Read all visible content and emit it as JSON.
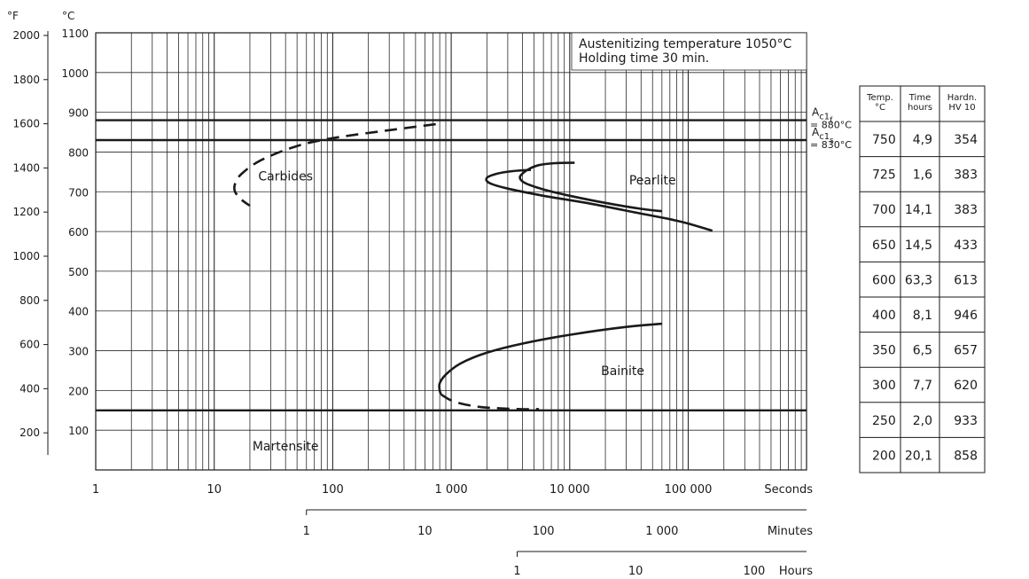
{
  "chart_data": {
    "type": "line",
    "title": "",
    "annotation": [
      "Austenitizing temperature 1050°C",
      "Holding time 30 min."
    ],
    "x_scale": "log",
    "x_range_seconds": [
      1,
      1000000
    ],
    "axes": {
      "seconds": {
        "unit_label": "Seconds",
        "ticks": [
          {
            "value": 1,
            "label": "1"
          },
          {
            "value": 10,
            "label": "10"
          },
          {
            "value": 100,
            "label": "100"
          },
          {
            "value": 1000,
            "label": "1 000"
          },
          {
            "value": 10000,
            "label": "10 000"
          },
          {
            "value": 100000,
            "label": "100 000"
          }
        ]
      },
      "minutes": {
        "unit_label": "Minutes",
        "ticks": [
          {
            "value": 1,
            "label": "1"
          },
          {
            "value": 10,
            "label": "10"
          },
          {
            "value": 100,
            "label": "100"
          },
          {
            "value": 1000,
            "label": "1 000"
          }
        ]
      },
      "hours": {
        "unit_label": "Hours",
        "ticks": [
          {
            "value": 1,
            "label": "1"
          },
          {
            "value": 10,
            "label": "10"
          },
          {
            "value": 100,
            "label": "100"
          }
        ]
      },
      "celsius": {
        "unit_label": "°C",
        "range": [
          0,
          1100
        ],
        "ticks": [
          100,
          200,
          300,
          400,
          500,
          600,
          700,
          800,
          900,
          1000,
          1100
        ]
      },
      "fahrenheit": {
        "unit_label": "°F",
        "ticks": [
          200,
          400,
          600,
          800,
          1000,
          1200,
          1400,
          1600,
          1800,
          2000
        ]
      }
    },
    "horizontal_lines": [
      {
        "label_main": "A",
        "label_sub": "c1",
        "label_subsub": "f",
        "label_value": "= 880°C",
        "y": 880
      },
      {
        "label_main": "A",
        "label_sub": "c1",
        "label_subsub": "s",
        "label_value": "= 830°C",
        "y": 830
      },
      {
        "label_main": "",
        "y": 150
      }
    ],
    "regions": [
      {
        "label": "Carbides",
        "x": 40,
        "y": 740
      },
      {
        "label": "Pearlite",
        "x": 50000,
        "y": 730
      },
      {
        "label": "Bainite",
        "x": 28000,
        "y": 250
      },
      {
        "label": "Martensite",
        "x": 40,
        "y": 60
      }
    ],
    "curves": [
      {
        "name": "carbides",
        "style": "dashed",
        "points": [
          [
            740,
            870
          ],
          [
            300,
            855
          ],
          [
            100,
            835
          ],
          [
            50,
            815
          ],
          [
            25,
            780
          ],
          [
            17,
            745
          ],
          [
            15,
            720
          ],
          [
            15,
            700
          ],
          [
            17,
            680
          ],
          [
            20,
            665
          ]
        ]
      },
      {
        "name": "pearlite-start",
        "style": "solid",
        "points": [
          [
            4700,
            755
          ],
          [
            3300,
            752
          ],
          [
            2400,
            745
          ],
          [
            2000,
            735
          ],
          [
            2100,
            722
          ],
          [
            3000,
            708
          ],
          [
            6000,
            690
          ],
          [
            15000,
            670
          ],
          [
            40000,
            645
          ],
          [
            70000,
            631
          ],
          [
            100000,
            620
          ],
          [
            160000,
            602
          ]
        ]
      },
      {
        "name": "pearlite-finish",
        "style": "solid",
        "points": [
          [
            11000,
            773
          ],
          [
            7500,
            772
          ],
          [
            5500,
            767
          ],
          [
            4400,
            755
          ],
          [
            3800,
            737
          ],
          [
            4200,
            722
          ],
          [
            6000,
            706
          ],
          [
            10000,
            690
          ],
          [
            20000,
            672
          ],
          [
            40000,
            657
          ],
          [
            60000,
            651
          ]
        ]
      },
      {
        "name": "bainite-start",
        "style": "solid",
        "points": [
          [
            60000,
            368
          ],
          [
            30000,
            360
          ],
          [
            10000,
            340
          ],
          [
            4000,
            318
          ],
          [
            2000,
            295
          ],
          [
            1200,
            268
          ],
          [
            900,
            240
          ],
          [
            800,
            218
          ],
          [
            800,
            200
          ],
          [
            820,
            190
          ]
        ]
      },
      {
        "name": "bainite-finish",
        "style": "dashed",
        "points": [
          [
            820,
            190
          ],
          [
            1000,
            175
          ],
          [
            1300,
            165
          ],
          [
            1800,
            158
          ],
          [
            2600,
            155
          ],
          [
            3800,
            153
          ],
          [
            5500,
            153
          ]
        ]
      }
    ]
  },
  "table": {
    "headers": [
      [
        "Temp.",
        "°C"
      ],
      [
        "Time",
        "hours"
      ],
      [
        "Hardn.",
        "HV 10"
      ]
    ],
    "rows": [
      [
        "750",
        "4,9",
        "354"
      ],
      [
        "725",
        "1,6",
        "383"
      ],
      [
        "700",
        "14,1",
        "383"
      ],
      [
        "650",
        "14,5",
        "433"
      ],
      [
        "600",
        "63,3",
        "613"
      ],
      [
        "400",
        "8,1",
        "946"
      ],
      [
        "350",
        "6,5",
        "657"
      ],
      [
        "300",
        "7,7",
        "620"
      ],
      [
        "250",
        "2,0",
        "933"
      ],
      [
        "200",
        "20,1",
        "858"
      ]
    ]
  }
}
